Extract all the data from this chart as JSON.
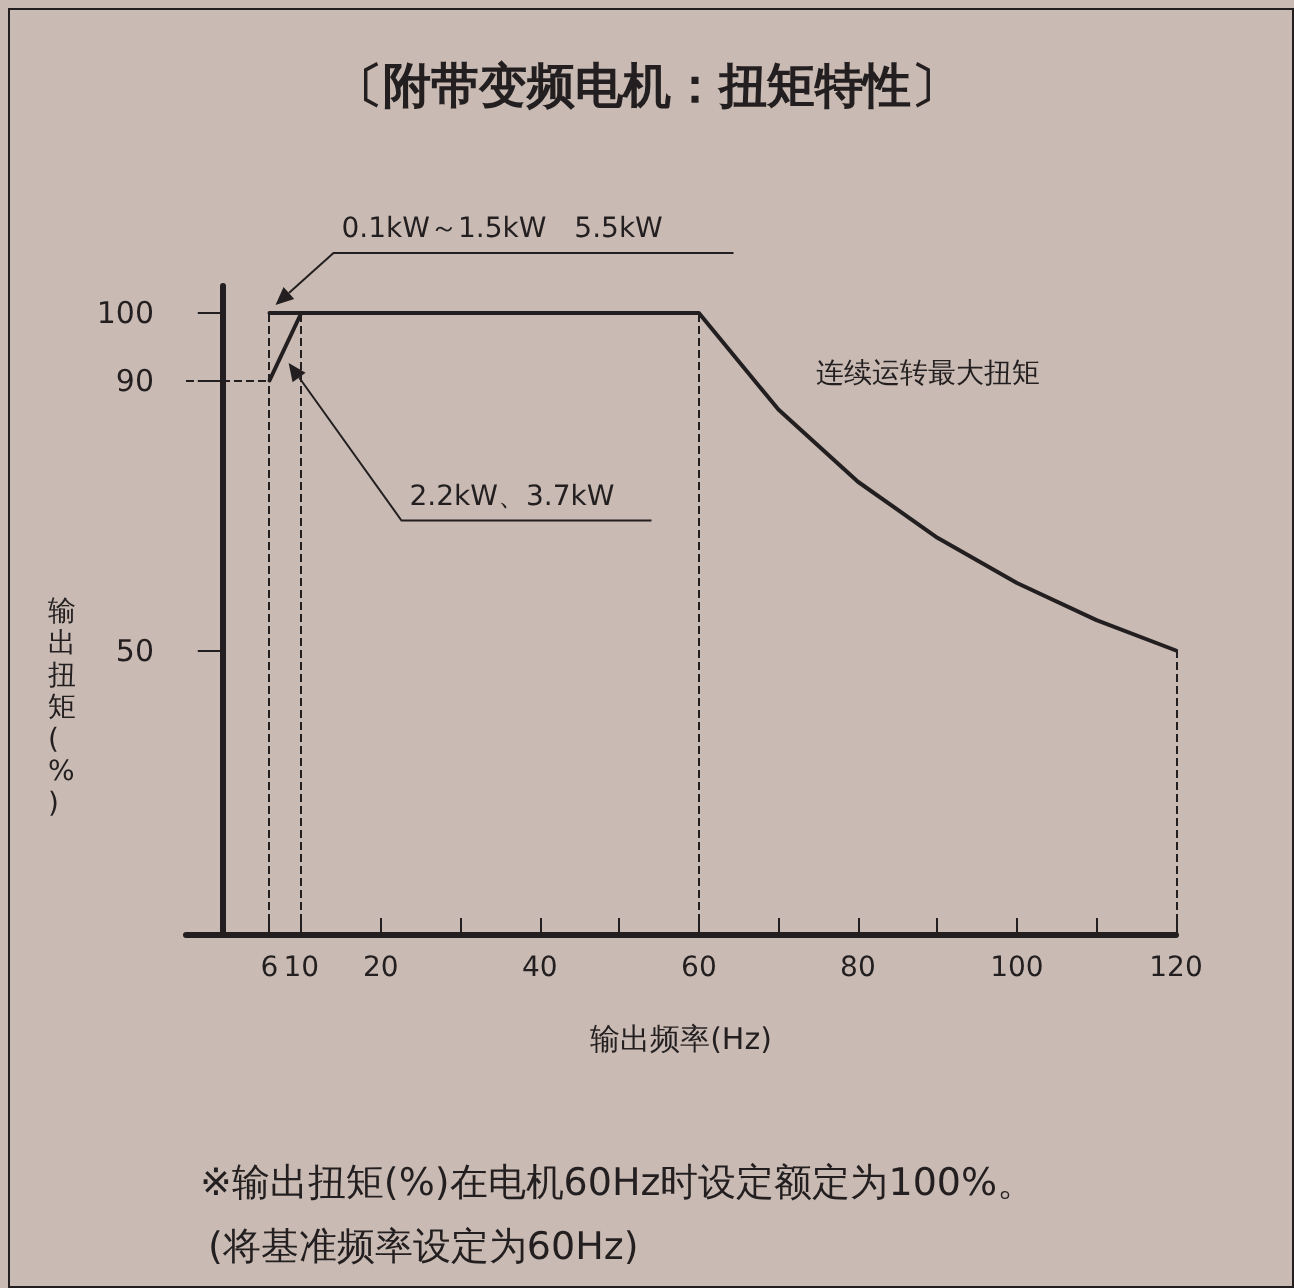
{
  "chart_data": {
    "type": "line",
    "title": "〔附带变频电机：扭矩特性〕",
    "xlabel": "输出频率(Hz)",
    "ylabel": "输出扭矩(%)",
    "series": [
      {
        "name": "0.1kW～1.5kW　5.5kW",
        "color": "#231f20",
        "x": [
          6,
          60,
          70,
          80,
          90,
          100,
          110,
          120
        ],
        "values": [
          100,
          100,
          85.7,
          75,
          66.7,
          60,
          54.5,
          50
        ]
      },
      {
        "name": "2.2kW、3.7kW",
        "color": "#231f20",
        "x": [
          6,
          10
        ],
        "values": [
          90,
          100
        ]
      }
    ],
    "xlim": [
      -4.5,
      120
    ],
    "xticks": [
      6,
      10,
      20,
      {
        "value": 30,
        "label": null
      },
      40,
      {
        "value": 50,
        "label": null
      },
      60,
      {
        "value": 70,
        "label": null
      },
      80,
      {
        "value": 90,
        "label": null
      },
      100,
      {
        "value": 110,
        "label": null
      },
      120
    ],
    "ylim": [
      8,
      104
    ],
    "yticks": [
      50,
      90,
      100
    ],
    "ref_lines": [
      {
        "axis": "x",
        "value": 6,
        "line_style": "dashed"
      },
      {
        "axis": "x",
        "value": 10,
        "line_style": "dashed"
      },
      {
        "axis": "x",
        "value": 60,
        "line_style": "dashed"
      },
      {
        "axis": "x",
        "value": 120,
        "line_style": "dashed"
      },
      {
        "axis": "y",
        "value": 90,
        "line_style": "dashed"
      }
    ],
    "annotations": [
      "连续运转最大扭矩",
      "※输出扭矩(%)在电机60Hz时设定额定为100%。",
      "(将基准频率设定为60Hz)"
    ],
    "grid": false,
    "legend": false,
    "marker": "none",
    "line_style": "solid"
  }
}
